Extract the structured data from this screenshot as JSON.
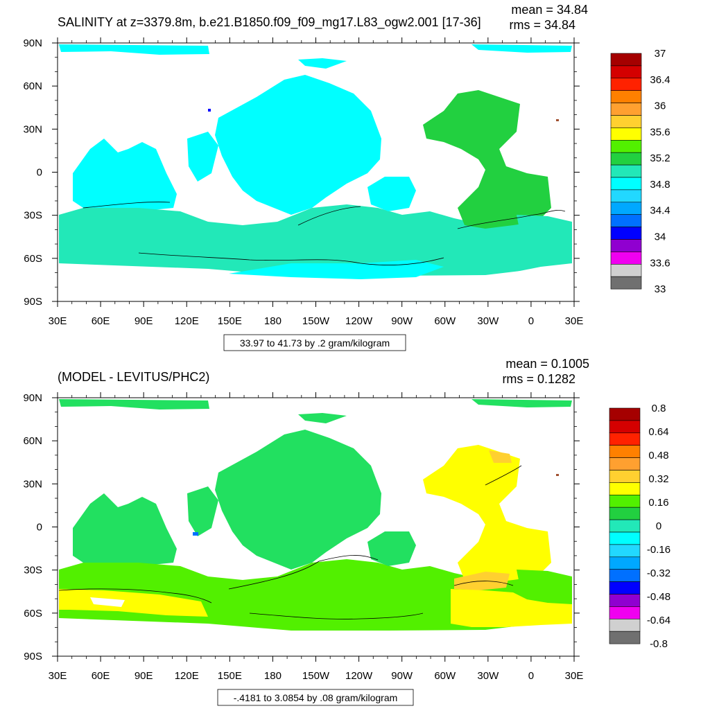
{
  "chart_data": [
    {
      "type": "heatmap",
      "title": "SALINITY at z=3379.8m, b.e21.B1850.f09_f09_mg17.L83_ogw2.001 [17-36]",
      "stats": {
        "mean": "mean = 34.84",
        "rms": "rms = 34.84"
      },
      "x_ticks": [
        "30E",
        "60E",
        "90E",
        "120E",
        "150E",
        "180",
        "150W",
        "120W",
        "90W",
        "60W",
        "30W",
        "0",
        "30E"
      ],
      "y_ticks": [
        "90N",
        "60N",
        "30N",
        "0",
        "30S",
        "60S",
        "90S"
      ],
      "info": "33.97 to 41.73 by .2 gram/kilogram",
      "colorbar": {
        "labels": [
          "37",
          "36.4",
          "36",
          "35.6",
          "35.2",
          "34.8",
          "34.4",
          "34",
          "33.6",
          "33"
        ],
        "colors": [
          "#a50000",
          "#d40000",
          "#ff2200",
          "#ff8000",
          "#ffa030",
          "#ffd030",
          "#ffff00",
          "#52f000",
          "#22d040",
          "#22e8b8",
          "#00ffff",
          "#22d8ff",
          "#00a8ff",
          "#0070ff",
          "#0000ff",
          "#9000d0",
          "#f000f0",
          "#d0d0d0",
          "#707070"
        ]
      },
      "dominant_colors": {
        "land": "#ffffff",
        "deep_ocean": "#00ffff",
        "southern": "#22e8b8",
        "atlantic": "#22d040",
        "contour": "#000000"
      }
    },
    {
      "type": "heatmap",
      "title": "(MODEL - LEVITUS/PHC2)",
      "stats": {
        "mean": "mean = 0.1005",
        "rms": "rms = 0.1282"
      },
      "x_ticks": [
        "30E",
        "60E",
        "90E",
        "120E",
        "150E",
        "180",
        "150W",
        "120W",
        "90W",
        "60W",
        "30W",
        "0",
        "30E"
      ],
      "y_ticks": [
        "90N",
        "60N",
        "30N",
        "0",
        "30S",
        "60S",
        "90S"
      ],
      "info": "-.4181 to 3.0854 by .08 gram/kilogram",
      "colorbar": {
        "labels": [
          "0.8",
          "0.64",
          "0.48",
          "0.32",
          "0.16",
          "0",
          "-0.16",
          "-0.32",
          "-0.48",
          "-0.64",
          "-0.8"
        ],
        "colors": [
          "#a50000",
          "#d40000",
          "#ff2200",
          "#ff8000",
          "#ffa030",
          "#ffd030",
          "#ffff00",
          "#52f000",
          "#22d040",
          "#22e8b8",
          "#00ffff",
          "#22d8ff",
          "#00a8ff",
          "#0070ff",
          "#0000ff",
          "#9000d0",
          "#f000f0",
          "#d0d0d0",
          "#707070"
        ]
      },
      "dominant_colors": {
        "land": "#ffffff",
        "pacific": "#22e060",
        "southern": "#52f000",
        "atlantic": "#ffff00",
        "contour": "#000000"
      }
    }
  ]
}
